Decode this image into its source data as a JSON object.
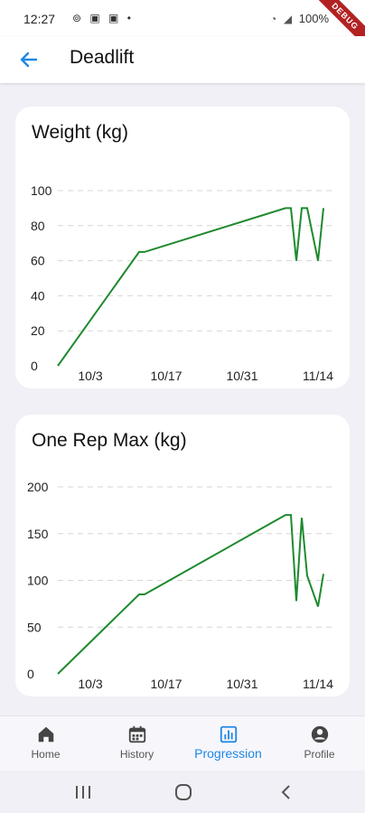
{
  "status_bar": {
    "time": "12:27",
    "notification_icons": "⊚ ▣ ▣ •",
    "battery": "100%",
    "debug_label": "DEBUG"
  },
  "app_bar": {
    "title": "Deadlift",
    "back_icon": "arrow-left-icon"
  },
  "charts": {
    "weight_title": "Weight (kg)",
    "orm_title": "One Rep Max (kg)"
  },
  "chart_data": [
    {
      "type": "line",
      "title": "Weight (kg)",
      "x_ticks": [
        "10/3",
        "10/17",
        "10/31",
        "11/14"
      ],
      "y_ticks": [
        0,
        20,
        40,
        60,
        80,
        100
      ],
      "ylim": [
        0,
        100
      ],
      "x_range": [
        "2023-09-27",
        "2023-11-16"
      ],
      "grid": "horizontal-dashed",
      "color": "#1e8a2e",
      "points": [
        {
          "x": "2023-09-27",
          "y": 0
        },
        {
          "x": "2023-10-12",
          "y": 65
        },
        {
          "x": "2023-10-13",
          "y": 65
        },
        {
          "x": "2023-11-08",
          "y": 90
        },
        {
          "x": "2023-11-09",
          "y": 90
        },
        {
          "x": "2023-11-10",
          "y": 60
        },
        {
          "x": "2023-11-11",
          "y": 90
        },
        {
          "x": "2023-11-12",
          "y": 90
        },
        {
          "x": "2023-11-14",
          "y": 60
        },
        {
          "x": "2023-11-15",
          "y": 90
        }
      ]
    },
    {
      "type": "line",
      "title": "One Rep Max (kg)",
      "x_ticks": [
        "10/3",
        "10/17",
        "10/31",
        "11/14"
      ],
      "y_ticks": [
        0,
        50,
        100,
        150,
        200
      ],
      "ylim": [
        0,
        200
      ],
      "x_range": [
        "2023-09-27",
        "2023-11-16"
      ],
      "grid": "horizontal-dashed",
      "color": "#1e8a2e",
      "points": [
        {
          "x": "2023-09-27",
          "y": 0
        },
        {
          "x": "2023-10-12",
          "y": 85
        },
        {
          "x": "2023-10-13",
          "y": 85
        },
        {
          "x": "2023-11-08",
          "y": 170
        },
        {
          "x": "2023-11-09",
          "y": 170
        },
        {
          "x": "2023-11-10",
          "y": 78
        },
        {
          "x": "2023-11-11",
          "y": 167
        },
        {
          "x": "2023-11-12",
          "y": 105
        },
        {
          "x": "2023-11-14",
          "y": 72
        },
        {
          "x": "2023-11-15",
          "y": 107
        }
      ]
    }
  ],
  "bottom_nav": {
    "items": [
      {
        "label": "Home",
        "icon": "home-icon"
      },
      {
        "label": "History",
        "icon": "calendar-icon"
      },
      {
        "label": "Progression",
        "icon": "bar-chart-icon",
        "active": true
      },
      {
        "label": "Profile",
        "icon": "account-circle-icon"
      }
    ]
  },
  "colors": {
    "accent": "#1e88e5",
    "line": "#1e8a2e",
    "background": "#f1f0f6",
    "card": "#ffffff"
  }
}
